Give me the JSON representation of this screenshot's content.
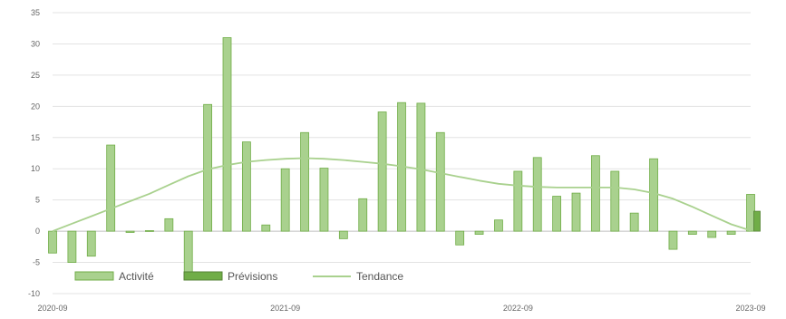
{
  "chart_data": {
    "type": "bar",
    "title": "",
    "xlabel": "",
    "ylabel": "",
    "ylim": [
      -10,
      35
    ],
    "yticks": [
      35,
      30,
      25,
      20,
      15,
      10,
      5,
      0,
      -5,
      -10
    ],
    "grid": true,
    "legend_position": "bottom-left",
    "x_tick_labels": [
      "2020-09",
      "2021-09",
      "2022-09",
      "2023-09"
    ],
    "categories": [
      "2020-09",
      "2020-10",
      "2020-11",
      "2020-12",
      "2021-01",
      "2021-02",
      "2021-03",
      "2021-04",
      "2021-05",
      "2021-06",
      "2021-07",
      "2021-08",
      "2021-09",
      "2021-10",
      "2021-11",
      "2021-12",
      "2022-01",
      "2022-02",
      "2022-03",
      "2022-04",
      "2022-05",
      "2022-06",
      "2022-07",
      "2022-08",
      "2022-09",
      "2022-10",
      "2022-11",
      "2022-12",
      "2023-01",
      "2023-02",
      "2023-03",
      "2023-04",
      "2023-05",
      "2023-06",
      "2023-07",
      "2023-08",
      "2023-09"
    ],
    "series": [
      {
        "name": "Activité",
        "kind": "bar",
        "color": "#a9d18e",
        "edge_color": "#70ad47",
        "values": [
          -3.5,
          -5,
          -4,
          13.8,
          -0.2,
          0.1,
          2,
          -7.5,
          20.3,
          31,
          14.3,
          1,
          10,
          15.8,
          10.1,
          -1.2,
          5.2,
          19.1,
          20.6,
          20.5,
          15.8,
          -2.2,
          -0.5,
          1.8,
          9.6,
          11.8,
          5.6,
          6.1,
          12.1,
          9.6,
          2.9,
          11.6,
          -2.9,
          -0.5,
          -1,
          -0.5,
          5.9
        ]
      },
      {
        "name": "Prévisions",
        "kind": "bar",
        "color": "#70ad47",
        "edge_color": "#548235",
        "values": [
          null,
          null,
          null,
          null,
          null,
          null,
          null,
          null,
          null,
          null,
          null,
          null,
          null,
          null,
          null,
          null,
          null,
          null,
          null,
          null,
          null,
          null,
          null,
          null,
          null,
          null,
          null,
          null,
          null,
          null,
          null,
          null,
          null,
          null,
          null,
          null,
          3.2
        ]
      },
      {
        "name": "Tendance",
        "kind": "line",
        "color": "#a9d18e",
        "values": [
          0,
          1.2,
          2.4,
          3.6,
          4.8,
          6,
          7.4,
          8.8,
          9.9,
          10.6,
          11.1,
          11.4,
          11.6,
          11.7,
          11.6,
          11.4,
          11.1,
          10.8,
          10.4,
          9.9,
          9.3,
          8.7,
          8.1,
          7.6,
          7.3,
          7.1,
          7.0,
          7.0,
          7.0,
          7.0,
          6.7,
          6.1,
          5.2,
          3.9,
          2.5,
          1.1,
          0.1
        ]
      }
    ]
  }
}
